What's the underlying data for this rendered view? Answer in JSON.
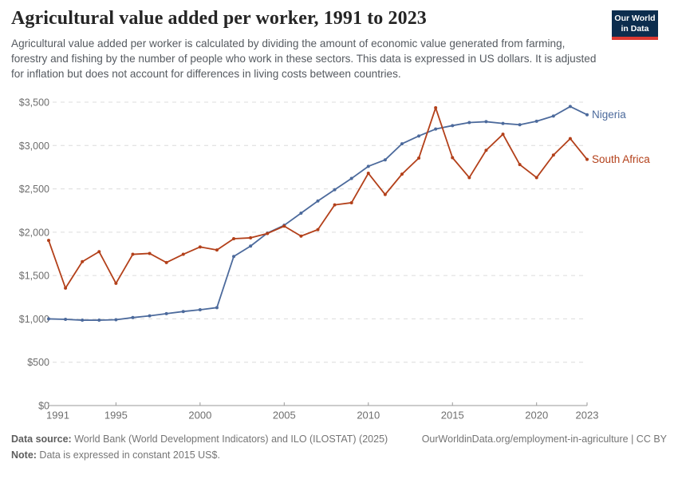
{
  "header": {
    "title": "Agricultural value added per worker, 1991 to 2023",
    "subtitle": "Agricultural value added per worker is calculated by dividing the amount of economic value generated from farming, forestry and fishing by the number of people who work in these sectors. This data is expressed in US dollars. It is adjusted for inflation but does not account for differences in living costs between countries.",
    "logo": {
      "line1": "Our World",
      "line2": "in Data",
      "bg_color": "#0c2d4e",
      "stripe_color": "#dc3932"
    }
  },
  "chart_data": {
    "type": "line",
    "title": "Agricultural value added per worker, 1991 to 2023",
    "xlabel": "",
    "ylabel": "",
    "x": [
      1991,
      1992,
      1993,
      1994,
      1995,
      1996,
      1997,
      1998,
      1999,
      2000,
      2001,
      2002,
      2003,
      2004,
      2005,
      2006,
      2007,
      2008,
      2009,
      2010,
      2011,
      2012,
      2013,
      2014,
      2015,
      2016,
      2017,
      2018,
      2019,
      2020,
      2021,
      2022,
      2023
    ],
    "series": [
      {
        "name": "Nigeria",
        "color": "#4C6A9C",
        "values": [
          1000,
          995,
          985,
          985,
          990,
          1015,
          1035,
          1060,
          1085,
          1105,
          1130,
          1720,
          1840,
          1990,
          2080,
          2220,
          2360,
          2490,
          2620,
          2760,
          2835,
          3020,
          3110,
          3190,
          3230,
          3265,
          3275,
          3255,
          3240,
          3280,
          3340,
          3450,
          3355
        ]
      },
      {
        "name": "South Africa",
        "color": "#B3401A",
        "values": [
          1905,
          1355,
          1660,
          1775,
          1410,
          1745,
          1755,
          1650,
          1745,
          1830,
          1795,
          1925,
          1935,
          1985,
          2070,
          1955,
          2030,
          2315,
          2340,
          2680,
          2435,
          2670,
          2855,
          3435,
          2860,
          2630,
          2945,
          3130,
          2780,
          2630,
          2890,
          3080,
          2840
        ]
      }
    ],
    "ylim": [
      0,
      3500
    ],
    "yticks": [
      0,
      500,
      1000,
      1500,
      2000,
      2500,
      3000,
      3500
    ],
    "ytick_labels": [
      "$0",
      "$500",
      "$1,000",
      "$1,500",
      "$2,000",
      "$2,500",
      "$3,000",
      "$3,500"
    ],
    "xticks": [
      1991,
      1995,
      2000,
      2005,
      2010,
      2015,
      2020,
      2023
    ],
    "grid": "horizontal-dashed",
    "legend_position": "end-of-line-labels",
    "grid_color": "#dcdcdc",
    "axis_color": "#9a9a9a"
  },
  "footer": {
    "datasource_label": "Data source:",
    "datasource_text": " World Bank (World Development Indicators) and ILO (ILOSTAT) (2025)",
    "url_text": "OurWorldinData.org/employment-in-agriculture | CC BY",
    "note_label": "Note:",
    "note_text": " Data is expressed in constant 2015 US$."
  }
}
